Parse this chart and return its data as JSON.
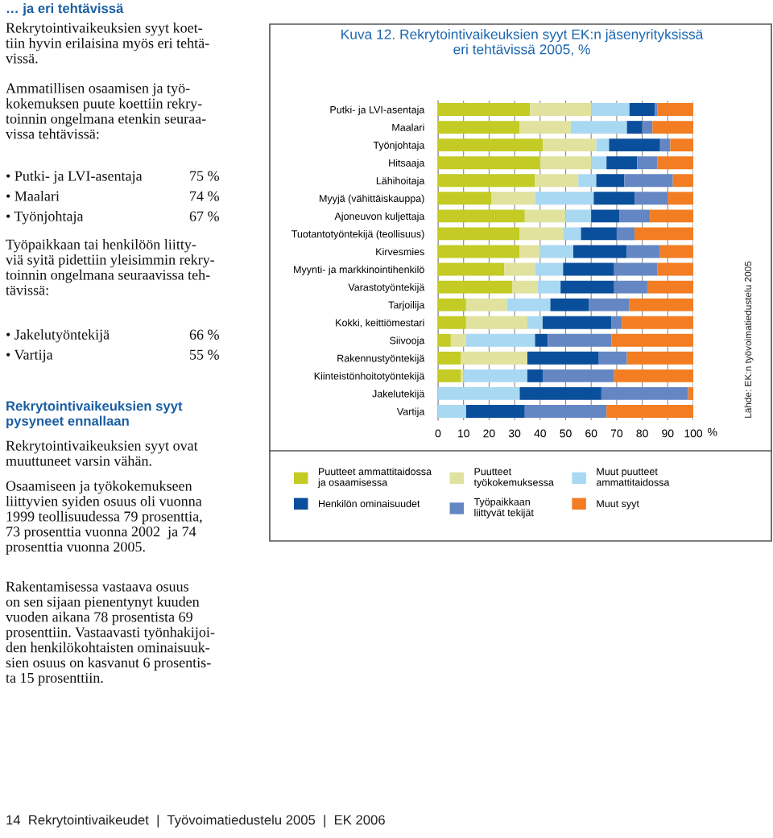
{
  "chart_data": {
    "type": "bar",
    "orientation": "horizontal",
    "stacked": true,
    "title": "Kuva 12. Rekrytointivaikeuksien syyt EK:n jäsenyrityksissä\neri tehtävissä 2005, %",
    "categories": [
      "Putki- ja LVI-asentaja",
      "Maalari",
      "Työnjohtaja",
      "Hitsaaja",
      "Lähihoitaja",
      "Myyjä (vähittäiskauppa)",
      "Ajoneuvon kuljettaja",
      "Tuotantotyöntekijä (teollisuus)",
      "Kirvesmies",
      "Myynti- ja markkinointihenkilö",
      "Varastotyöntekijä",
      "Tarjoilija",
      "Kokki, keittiömestari",
      "Siivooja",
      "Rakennustyöntekijä",
      "Kiinteistönhoitotyöntekijä",
      "Jakelutekijä",
      "Vartija"
    ],
    "series": [
      {
        "name": "Puutteet ammattitaidossa\nja osaamisessa",
        "color": "#c3cb24",
        "values": [
          36,
          32,
          41,
          40,
          38,
          21,
          34,
          32,
          32,
          26,
          29,
          11,
          11,
          5,
          9,
          9,
          0,
          0
        ]
      },
      {
        "name": "Puutteet\ntyökokemuksessa",
        "color": "#e0e29e",
        "values": [
          24,
          20,
          21,
          20,
          17,
          17,
          16,
          17,
          8,
          12,
          10,
          16,
          24,
          6,
          26,
          1,
          0,
          0
        ]
      },
      {
        "name": "Muut puutteet\nammattitaidossa",
        "color": "#a9d8f2",
        "values": [
          15,
          22,
          5,
          6,
          7,
          23,
          10,
          7,
          13,
          11,
          9,
          17,
          6,
          27,
          0,
          25,
          32,
          11
        ]
      },
      {
        "name": "Henkilön ominaisuudet",
        "color": "#0a4f9c",
        "values": [
          10,
          6,
          20,
          12,
          11,
          16,
          11,
          14,
          21,
          20,
          21,
          15,
          27,
          5,
          28,
          6,
          32,
          23
        ]
      },
      {
        "name": "Työpaikkaan\nliittyvät tekijät",
        "color": "#6487c4",
        "values": [
          1,
          4,
          4,
          8,
          19,
          13,
          12,
          7,
          13,
          17,
          13,
          16,
          4,
          25,
          11,
          28,
          34,
          32
        ]
      },
      {
        "name": "Muut syyt",
        "color": "#f37d22",
        "values": [
          14,
          16,
          9,
          14,
          8,
          10,
          17,
          23,
          13,
          14,
          18,
          25,
          28,
          32,
          26,
          31,
          2,
          34
        ]
      }
    ],
    "xlim": [
      0,
      100
    ],
    "xticks": [
      0,
      10,
      20,
      30,
      40,
      50,
      60,
      70,
      80,
      90,
      100
    ],
    "xlabel": "%",
    "grid": "x",
    "legend": "bottom",
    "annotations": [
      "… ja eri tehtävissä",
      "Rekrytointivaikeuksien syyt koet-\ntiin hyvin erilaisina myös eri tehtä-\nvissä.",
      "Ammatillisen osaamisen ja työ-\nkokemuksen puute koettiin rekry-\ntoinnin ongelmana etenkin seuraa-\nvissa tehtävissä:",
      "• Putki- ja LVI-asentaja",
      "75 %",
      "• Maalari",
      "74 %",
      "• Työnjohtaja",
      "67 %",
      "Työpaikkaan tai henkilöön liitty-\nviä syitä pidettiin yleisimmin rekry-\ntoinnin ongelmana seuraavissa teh-\ntävissä:",
      "• Jakelutyöntekijä",
      "66 %",
      "• Vartija",
      "55 %",
      "Rekrytointivaikeuksien syyt\npysyneet ennallaan",
      "Rekrytointivaikeuksien syyt ovat\nmuuttuneet varsin vähän.",
      "Osaamiseen ja työkokemukseen\nliittyvien syiden osuus oli vuonna\n1999 teollisuudessa 79 prosenttia,\n73 prosenttia vuonna 2002  ja 74\nprosenttia vuonna 2005.",
      "Rakentamisessa vastaava osuus\non sen sijaan pienentynyt kuuden\nvuoden aikana 78 prosentista 69\nprosenttiin. Vastaavasti työnhakijoi-\nden henkilökohtaisten ominaisuuk-\nsien osuus on kasvanut 6 prosentis-\nta 15 prosenttiin.",
      "Lähde: EK:n työvoimatiedustelu 2005",
      "14  Rekrytointivaikeudet  |  Työvoimatiedustelu 2005  |  EK 2006"
    ]
  }
}
